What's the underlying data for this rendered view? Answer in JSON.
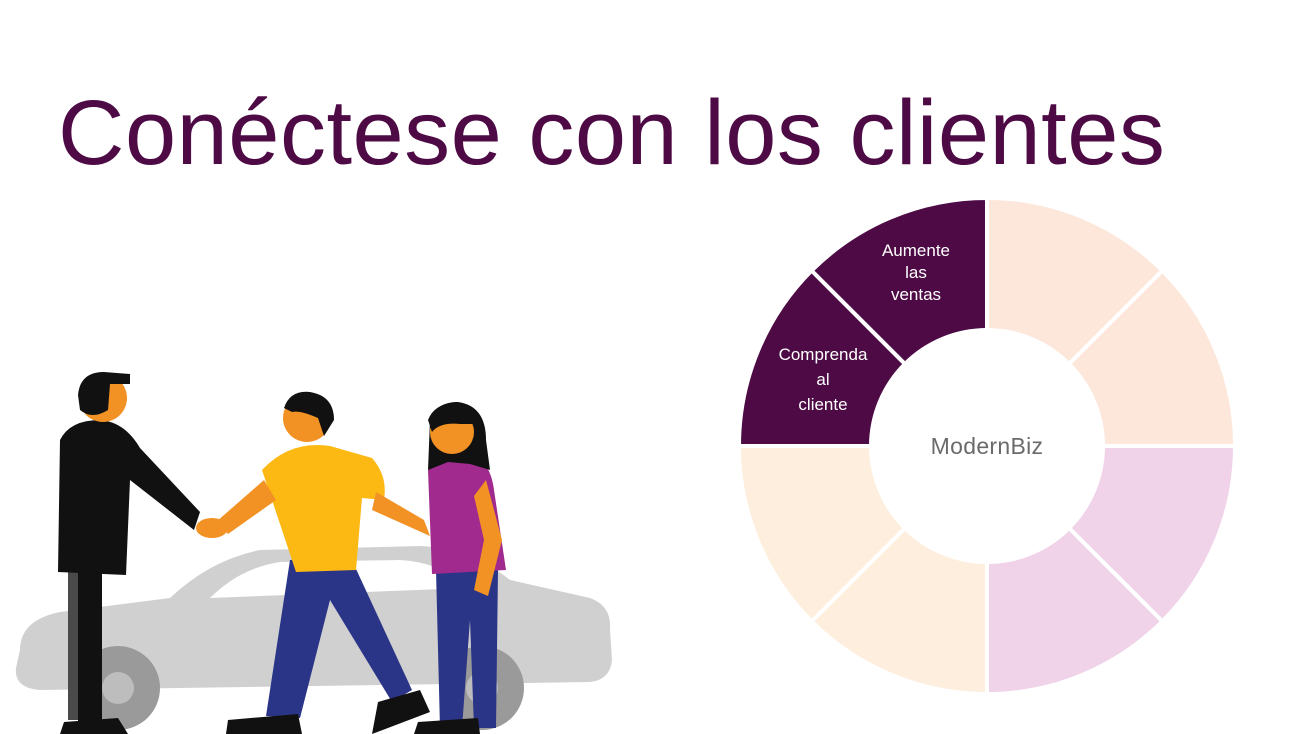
{
  "slide": {
    "title": "Conéctese con los clientes"
  },
  "wheel": {
    "center_label": "ModernBiz",
    "segments": [
      {
        "label": "",
        "color": "#fde6da"
      },
      {
        "label": "",
        "color": "#fde6da"
      },
      {
        "label": "",
        "color": "#f0d3e9"
      },
      {
        "label": "",
        "color": "#f0d3e9"
      },
      {
        "label": "",
        "color": "#fdeedd"
      },
      {
        "label": "",
        "color": "#fdeedd"
      },
      {
        "label": "Comprenda\nal\ncliente",
        "color": "#4d0a45"
      },
      {
        "label": "Aumente\nlas\nventas",
        "color": "#4d0a45"
      }
    ],
    "active_segments": [
      "Aumente las ventas",
      "Comprenda al cliente"
    ]
  },
  "colors": {
    "accent": "#4d0a45",
    "car": "#d0d0d0",
    "suit": "#111111",
    "skin": "#f39224",
    "yellow_shirt": "#fdb913",
    "magenta_shirt": "#a02a8e",
    "pants_blue": "#2b3588"
  },
  "illustration": {
    "icon": "handshake-car-scene"
  }
}
